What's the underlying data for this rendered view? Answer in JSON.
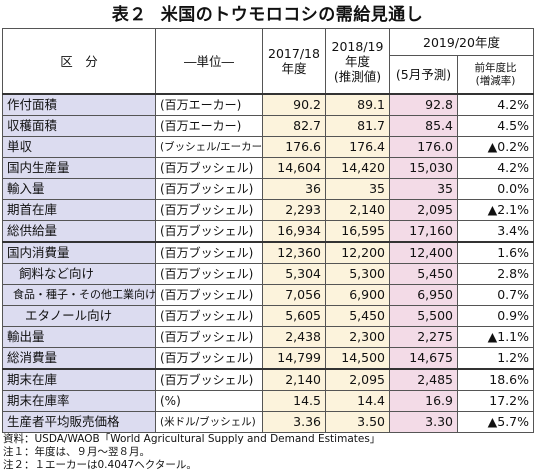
{
  "title": {
    "label": "表２",
    "text": "米国のトウモロコシの需給見通し"
  },
  "header": {
    "item": "区　分",
    "unit": "―単位―",
    "y1": "2017/18\n年度",
    "y2_a": "2018/19",
    "y2_b": "年度",
    "y2_c": "(推測値)",
    "y3_group": "2019/20年度",
    "y3_sub": "(5月予測)",
    "chg_a": "前年度比",
    "chg_b": "(増減率)"
  },
  "rows": [
    {
      "item": "作付面積",
      "unit": "(百万エーカー)",
      "v1": "90.2",
      "v2": "89.1",
      "v3": "92.8",
      "chg": "4.2%"
    },
    {
      "item": "収穫面積",
      "unit": "(百万エーカー)",
      "v1": "82.7",
      "v2": "81.7",
      "v3": "85.4",
      "chg": "4.5%"
    },
    {
      "item": "単収",
      "unit": "(ブッシェル/エーカー)",
      "v1": "176.6",
      "v2": "176.4",
      "v3": "176.0",
      "chg": "▲0.2%"
    },
    {
      "item": "国内生産量",
      "unit": "(百万ブッシェル)",
      "v1": "14,604",
      "v2": "14,420",
      "v3": "15,030",
      "chg": "4.2%"
    },
    {
      "item": "輸入量",
      "unit": "(百万ブッシェル)",
      "v1": "36",
      "v2": "35",
      "v3": "35",
      "chg": "0.0%"
    },
    {
      "item": "期首在庫",
      "unit": "(百万ブッシェル)",
      "v1": "2,293",
      "v2": "2,140",
      "v3": "2,095",
      "chg": "▲2.1%"
    },
    {
      "item": "総供給量",
      "unit": "(百万ブッシェル)",
      "v1": "16,934",
      "v2": "16,595",
      "v3": "17,160",
      "chg": "3.4%"
    },
    {
      "item": "国内消費量",
      "unit": "(百万ブッシェル)",
      "v1": "12,360",
      "v2": "12,200",
      "v3": "12,400",
      "chg": "1.6%"
    },
    {
      "item": "飼料など向け",
      "unit": "(百万ブッシェル)",
      "v1": "5,304",
      "v2": "5,300",
      "v3": "5,450",
      "chg": "2.8%"
    },
    {
      "item": "食品・種子・その他工業向け",
      "unit": "(百万ブッシェル)",
      "v1": "7,056",
      "v2": "6,900",
      "v3": "6,950",
      "chg": "0.7%"
    },
    {
      "item": "エタノール向け",
      "unit": "(百万ブッシェル)",
      "v1": "5,605",
      "v2": "5,450",
      "v3": "5,500",
      "chg": "0.9%"
    },
    {
      "item": "輸出量",
      "unit": "(百万ブッシェル)",
      "v1": "2,438",
      "v2": "2,300",
      "v3": "2,275",
      "chg": "▲1.1%"
    },
    {
      "item": "総消費量",
      "unit": "(百万ブッシェル)",
      "v1": "14,799",
      "v2": "14,500",
      "v3": "14,675",
      "chg": "1.2%"
    },
    {
      "item": "期末在庫",
      "unit": "(百万ブッシェル)",
      "v1": "2,140",
      "v2": "2,095",
      "v3": "2,485",
      "chg": "18.6%"
    },
    {
      "item": "期末在庫率",
      "unit": "(%)",
      "v1": "14.5",
      "v2": "14.4",
      "v3": "16.9",
      "chg": "17.2%"
    },
    {
      "item": "生産者平均販売価格",
      "unit": "(米ドル/ブッシェル)",
      "v1": "3.36",
      "v2": "3.50",
      "v3": "3.30",
      "chg": "▲5.7%"
    }
  ],
  "notes": [
    "資料：USDA/WAOB「World Agricultural Supply and Demand Estimates」",
    "注１：年度は、９月～翌８月。",
    "注２：１エーカーは0.4047ヘクタール。"
  ]
}
